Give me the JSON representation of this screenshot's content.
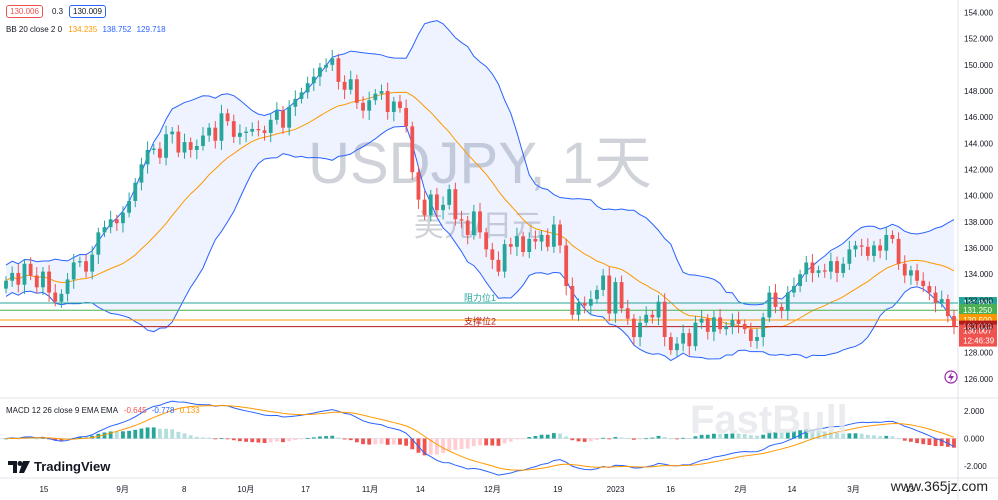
{
  "header": {
    "bid_box": "130.006",
    "spread": "0.3",
    "ask_box": "130.009",
    "bb_label": "BB 20 close 2 0",
    "bb_values": [
      "134.235",
      "138.752",
      "129.718"
    ],
    "macd_label": "MACD 12 26 close 9 EMA EMA",
    "macd_values": [
      "-0.645",
      "-0.778",
      "0.133"
    ]
  },
  "watermark": {
    "symbol": "USDJPY, 1天",
    "name": "美元/日元"
  },
  "brand": {
    "logo_text": "TradingView",
    "site": "www.365jz.com",
    "bottom_watermark": "FastBull"
  },
  "levels": [
    {
      "name": "阻力位1",
      "value": 131.8,
      "label": "131.800",
      "color": "#26a69a"
    },
    {
      "name": "",
      "value": 131.25,
      "label": "131.250",
      "color": "#4caf50"
    },
    {
      "name": "",
      "value": 130.5,
      "label": "130.500",
      "color": "#ff9800"
    },
    {
      "name": "支撑位2",
      "value": 130.0,
      "label": "130.000",
      "color": "#b71c1c"
    }
  ],
  "price_tag": {
    "value": "130.007",
    "countdown": "12:46:39"
  },
  "chart_data": {
    "type": "candlestick",
    "title": "USDJPY, 1天",
    "x_ticks": [
      "15",
      "9月",
      "8",
      "10月",
      "17",
      "11月",
      "14",
      "12月",
      "19",
      "2023",
      "16",
      "2月",
      "14",
      "3月",
      "13"
    ],
    "y_ticks": [
      "154.000",
      "152.000",
      "150.000",
      "148.000",
      "146.000",
      "144.000",
      "142.000",
      "140.000",
      "138.000",
      "136.000",
      "134.000",
      "132.000",
      "130.000",
      "128.000",
      "126.000"
    ],
    "ylim": [
      125,
      154.5
    ],
    "macd_ticks": [
      "2.000",
      "0.000",
      "-2.000"
    ],
    "macd_ylim": [
      -2.6,
      2.6
    ],
    "closes": [
      133.5,
      134.1,
      133.2,
      134.8,
      133.9,
      133.0,
      134.2,
      132.6,
      131.9,
      132.5,
      133.6,
      134.9,
      135.0,
      134.2,
      135.5,
      137.2,
      137.6,
      138.2,
      137.9,
      138.7,
      139.6,
      141.0,
      142.4,
      143.5,
      143.6,
      142.9,
      144.7,
      144.9,
      143.3,
      144.1,
      143.5,
      143.8,
      144.6,
      145.2,
      144.2,
      146.3,
      145.7,
      144.5,
      144.8,
      144.9,
      145.1,
      145.0,
      144.8,
      145.8,
      146.5,
      145.2,
      146.8,
      147.4,
      147.9,
      148.6,
      149.1,
      149.8,
      150.0,
      150.5,
      148.7,
      148.1,
      148.9,
      147.1,
      146.5,
      147.3,
      147.8,
      148.0,
      146.4,
      147.2,
      146.7,
      145.3,
      141.8,
      139.7,
      138.5,
      140.1,
      138.9,
      139.3,
      140.5,
      138.2,
      138.1,
      137.0,
      138.8,
      137.2,
      135.9,
      135.1,
      134.2,
      136.3,
      136.1,
      136.9,
      135.7,
      136.7,
      136.5,
      137.0,
      136.1,
      137.8,
      136.2,
      133.1,
      130.9,
      131.8,
      131.6,
      132.1,
      132.8,
      133.9,
      131.0,
      133.4,
      131.4,
      130.6,
      129.2,
      130.3,
      130.9,
      130.7,
      131.9,
      129.2,
      128.2,
      128.7,
      129.5,
      128.5,
      130.3,
      130.6,
      129.6,
      130.7,
      129.8,
      130.0,
      130.5,
      130.2,
      129.8,
      128.9,
      129.2,
      130.7,
      132.6,
      131.5,
      131.2,
      132.6,
      133.1,
      134.0,
      134.9,
      134.1,
      134.3,
      134.2,
      135.0,
      134.1,
      134.8,
      135.9,
      136.2,
      136.1,
      135.4,
      136.2,
      135.8,
      137.0,
      136.7,
      134.8,
      133.9,
      134.3,
      133.5,
      133.1,
      132.6,
      131.8,
      132.1,
      130.8,
      130.0
    ]
  }
}
